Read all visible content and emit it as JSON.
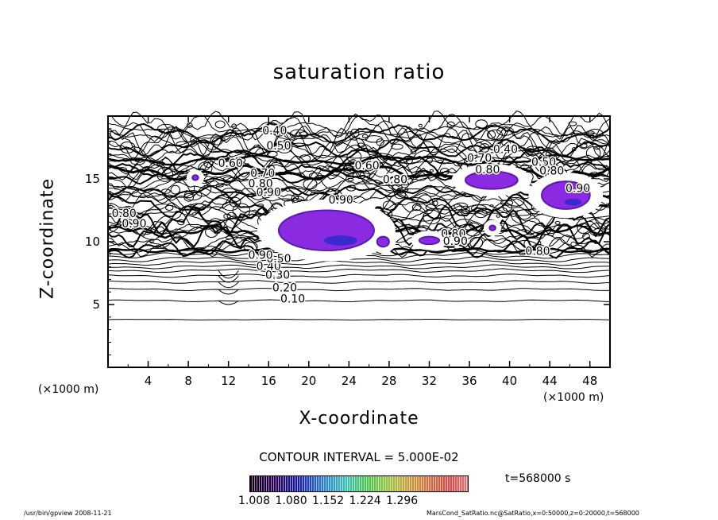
{
  "chart_data": {
    "type": "contour",
    "title": "saturation ratio",
    "xlabel": "X-coordinate",
    "ylabel": "Z-coordinate",
    "x_unit_label": "(×1000 m)",
    "x_unit_label_right": "(×1000 m)",
    "xlim": [
      0,
      50
    ],
    "ylim": [
      0,
      20
    ],
    "x_ticks": [
      "4",
      "8",
      "12",
      "16",
      "20",
      "24",
      "28",
      "32",
      "36",
      "40",
      "44",
      "48"
    ],
    "y_ticks": [
      "5",
      "10",
      "15"
    ],
    "contour_interval_text": "CONTOUR INTERVAL = 5.000E-02",
    "time_text": "t=568000 s",
    "colorbar_labels": "1.008  1.080  1.152  1.224  1.296",
    "contour_labels": [
      {
        "text": "0.10",
        "x": 18.4,
        "z": 5.4
      },
      {
        "text": "0.20",
        "x": 17.6,
        "z": 6.3
      },
      {
        "text": "0.30",
        "x": 16.9,
        "z": 7.3
      },
      {
        "text": "0.40",
        "x": 16.0,
        "z": 8.0
      },
      {
        "text": "0.50",
        "x": 17.0,
        "z": 8.6
      },
      {
        "text": "0.40",
        "x": 16.6,
        "z": 18.8
      },
      {
        "text": "0.50",
        "x": 17.0,
        "z": 17.6
      },
      {
        "text": "0.60",
        "x": 12.2,
        "z": 16.2
      },
      {
        "text": "0.70",
        "x": 15.4,
        "z": 15.4
      },
      {
        "text": "0.80",
        "x": 15.2,
        "z": 14.6
      },
      {
        "text": "0.90",
        "x": 16.0,
        "z": 13.9
      },
      {
        "text": "0.40",
        "x": 39.6,
        "z": 17.3
      },
      {
        "text": "0.50",
        "x": 43.4,
        "z": 16.3
      },
      {
        "text": "0.60",
        "x": 25.8,
        "z": 16.0
      },
      {
        "text": "0.80",
        "x": 28.6,
        "z": 14.9
      },
      {
        "text": "0.90",
        "x": 23.2,
        "z": 13.3
      },
      {
        "text": "0.80",
        "x": 34.4,
        "z": 10.6
      },
      {
        "text": "0.90",
        "x": 34.6,
        "z": 10.0
      },
      {
        "text": "0.90",
        "x": 15.2,
        "z": 8.9
      },
      {
        "text": "0.80",
        "x": 37.8,
        "z": 15.7
      },
      {
        "text": "0.70",
        "x": 37.0,
        "z": 16.6
      },
      {
        "text": "0.80",
        "x": 44.2,
        "z": 15.6
      },
      {
        "text": "0.90",
        "x": 46.8,
        "z": 14.2
      },
      {
        "text": "0.80",
        "x": 42.8,
        "z": 9.2
      },
      {
        "text": "0.80",
        "x": 1.6,
        "z": 12.2
      },
      {
        "text": "0.90",
        "x": 2.6,
        "z": 11.4
      }
    ],
    "supersaturated_regions": [
      {
        "x": [
          17.0,
          26.5
        ],
        "z": [
          9.3,
          12.5
        ],
        "peak": 1.1
      },
      {
        "x": [
          35.6,
          40.8
        ],
        "z": [
          14.2,
          15.6
        ],
        "peak": 1.05
      },
      {
        "x": [
          43.2,
          48.0
        ],
        "z": [
          12.6,
          14.8
        ],
        "peak": 1.12
      },
      {
        "x": [
          8.4,
          9.0
        ],
        "z": [
          14.9,
          15.3
        ],
        "peak": 1.02
      },
      {
        "x": [
          26.8,
          28.0
        ],
        "z": [
          9.6,
          10.4
        ],
        "peak": 1.02
      },
      {
        "x": [
          31.0,
          33.0
        ],
        "z": [
          9.8,
          10.4
        ],
        "peak": 1.02
      },
      {
        "x": [
          38.0,
          38.6
        ],
        "z": [
          10.9,
          11.3
        ],
        "peak": 1.01
      }
    ],
    "colors": {
      "fill": "#8a2be2",
      "fill_dark": "#5a1bb0",
      "line": "#000000"
    }
  },
  "footer": {
    "left": "/usr/bin/gpview   2008-11-21",
    "right": "MarsCond_SatRatio.nc@SatRatio,x=0:50000,z=0:20000,t=568000"
  }
}
